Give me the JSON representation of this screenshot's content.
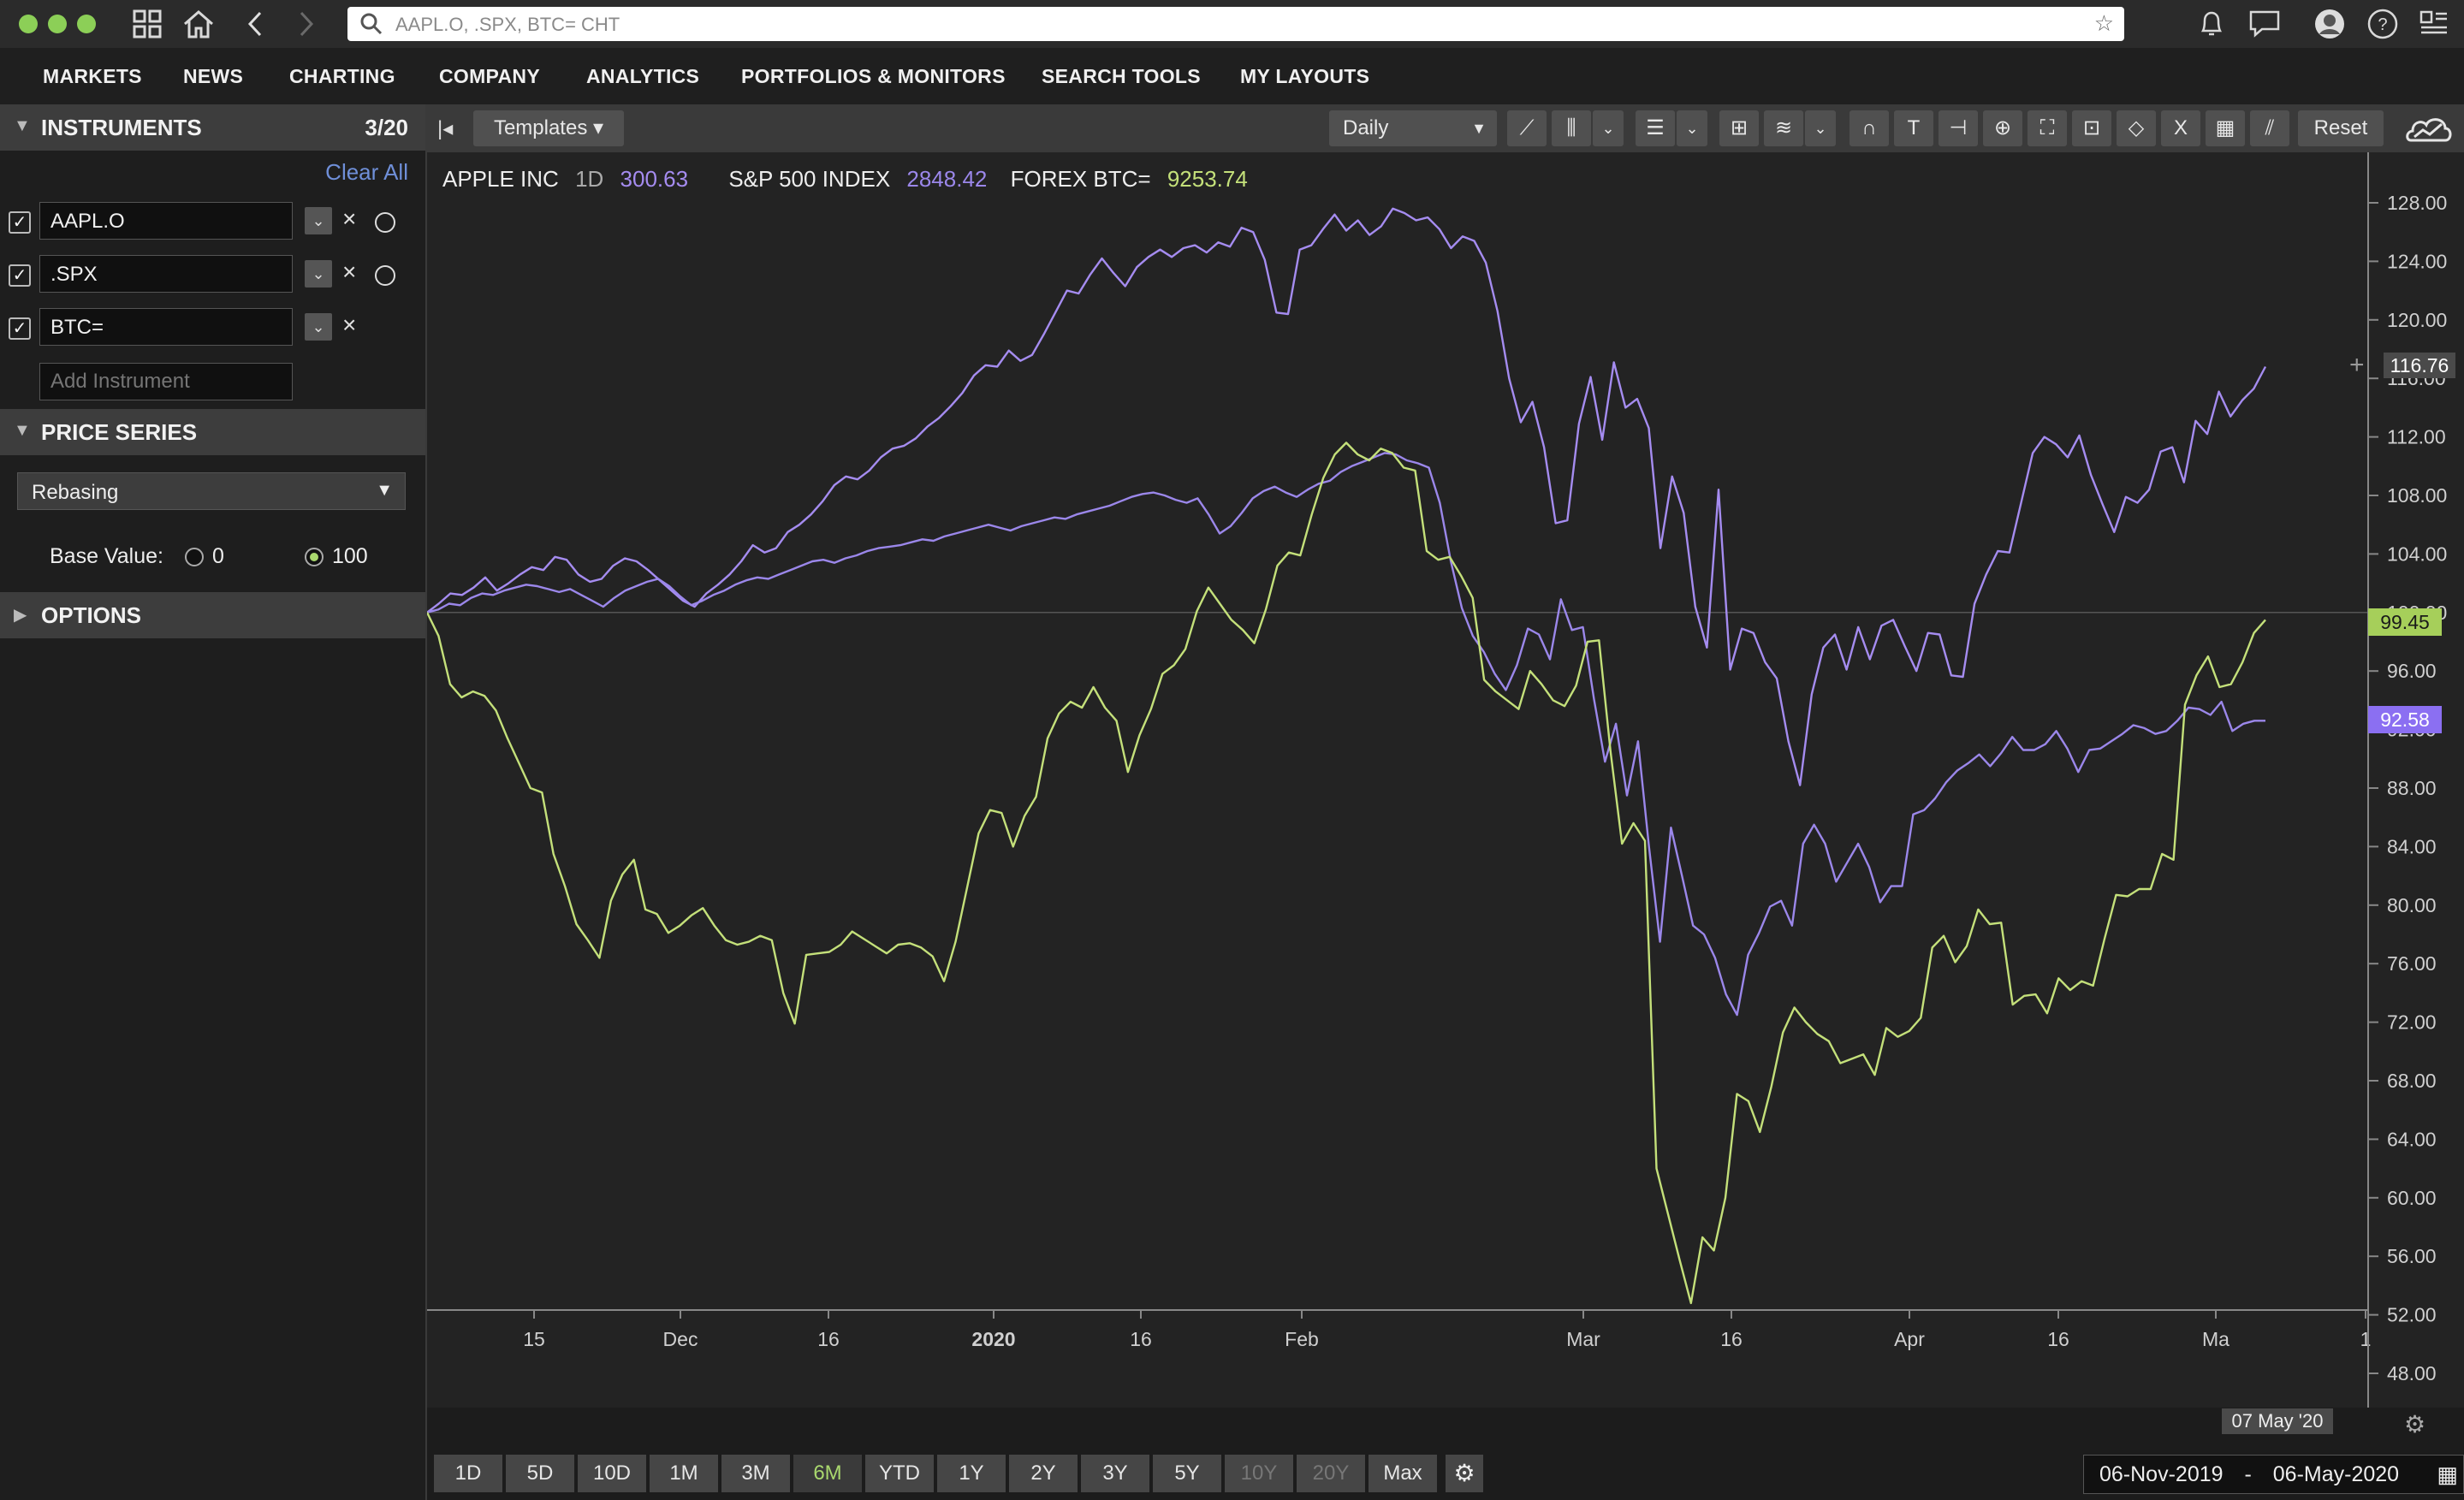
{
  "titlebar": {
    "search_text": "AAPL.O, .SPX, BTC= CHT",
    "icons": [
      "grid-icon",
      "home-icon",
      "back-icon",
      "forward-icon",
      "bell-icon",
      "chat-icon",
      "profile-icon",
      "help-icon",
      "panel-icon"
    ]
  },
  "nav": {
    "items": [
      "MARKETS",
      "NEWS",
      "CHARTING",
      "COMPANY",
      "ANALYTICS",
      "PORTFOLIOS & MONITORS",
      "SEARCH TOOLS",
      "MY LAYOUTS"
    ]
  },
  "instruments": {
    "title": "INSTRUMENTS",
    "count": "3/20",
    "clear_all": "Clear All",
    "items": [
      {
        "ric": "AAPL.O",
        "checked": true
      },
      {
        "ric": ".SPX",
        "checked": true
      },
      {
        "ric": "BTC=",
        "checked": true
      }
    ],
    "add_placeholder": "Add Instrument"
  },
  "price_series": {
    "title": "PRICE SERIES",
    "mode": "Rebasing",
    "base_label": "Base Value:",
    "base_options": [
      "0",
      "100"
    ],
    "base_selected": "100"
  },
  "options": {
    "title": "OPTIONS"
  },
  "toolbar": {
    "templates": "Templates ▾",
    "interval": "Daily",
    "reset": "Reset"
  },
  "legend": {
    "aapl_name": "APPLE INC",
    "aapl_int": "1D",
    "aapl_val": "300.63",
    "spx_name": "S&P 500 INDEX",
    "spx_val": "2848.42",
    "btc_name": "FOREX BTC=",
    "btc_val": "9253.74"
  },
  "colors": {
    "aapl": "#a58cf0",
    "spx": "#9b87ea",
    "btc": "#c4e07a",
    "label_purple": "#8b6ff2",
    "label_green": "#a6cf5a"
  },
  "chart_data": {
    "type": "line",
    "x_range": [
      "06-Nov-2019",
      "06-May-2020"
    ],
    "x_ticks": [
      "15",
      "Dec",
      "16",
      "2020",
      "16",
      "Feb",
      "Mar",
      "16",
      "Apr",
      "16",
      "Ma",
      "1"
    ],
    "y_ticks": [
      "128.00",
      "124.00",
      "120.00",
      "116.00",
      "112.00",
      "108.00",
      "104.00",
      "100.00",
      "96.00",
      "92.00",
      "88.00",
      "84.00",
      "80.00",
      "76.00",
      "72.00",
      "68.00",
      "64.00",
      "60.00",
      "56.00",
      "52.00",
      "48.00"
    ],
    "ylim": [
      48,
      130
    ],
    "base_value": 100,
    "last_values": [
      "116.76",
      "99.45",
      "92.58"
    ],
    "crosshair_date": "07 May '20",
    "series": [
      {
        "key": "aapl",
        "values": [
          100,
          100.6,
          101.3,
          101.2,
          101.7,
          102.4,
          101.5,
          102.0,
          102.6,
          103.1,
          102.9,
          103.8,
          103.6,
          102.6,
          102.1,
          102.3,
          103.2,
          103.7,
          103.5,
          102.9,
          102.2,
          101.5,
          100.8,
          100.4,
          101.3,
          101.9,
          102.6,
          103.5,
          104.6,
          104.1,
          104.4,
          105.5,
          106.0,
          106.7,
          107.6,
          108.7,
          109.3,
          109.1,
          109.7,
          110.6,
          111.2,
          111.4,
          111.9,
          112.7,
          113.3,
          114.1,
          115.0,
          116.2,
          116.9,
          116.8,
          117.9,
          117.2,
          117.6,
          119.0,
          120.5,
          122.0,
          121.8,
          123.1,
          124.2,
          123.2,
          122.3,
          123.6,
          124.3,
          124.8,
          124.3,
          124.9,
          125.1,
          124.6,
          125.3,
          125.0,
          126.3,
          126.0,
          124.1,
          120.5,
          120.4,
          124.8,
          125.1,
          126.2,
          127.2,
          126.1,
          126.8,
          125.8,
          126.4,
          127.6,
          127.3,
          126.8,
          127.0,
          126.2,
          124.9,
          125.7,
          125.4,
          123.9,
          120.6,
          116.0,
          113.0,
          114.4,
          111.3,
          106.1,
          106.3,
          112.9,
          116.1,
          111.8,
          117.1,
          114.0,
          114.6,
          112.6,
          104.4,
          109.3,
          106.8,
          100.4,
          97.6,
          108.4,
          96.1,
          98.9,
          98.6,
          96.6,
          95.5,
          91.2,
          88.2,
          94.4,
          97.6,
          98.5,
          96.1,
          99.0,
          96.8,
          99.1,
          99.5,
          97.7,
          96.0,
          98.6,
          98.5,
          95.7,
          95.6,
          100.6,
          102.6,
          104.2,
          104.1,
          107.5,
          110.9,
          112.0,
          111.5,
          110.6,
          112.1,
          109.4,
          107.4,
          105.5,
          107.9,
          107.5,
          108.4,
          111.0,
          111.3,
          108.9,
          113.1,
          112.2,
          115.1,
          113.4,
          114.5,
          115.3,
          116.8
        ]
      },
      {
        "key": "spx",
        "values": [
          100,
          100.2,
          100.6,
          100.5,
          101.0,
          101.3,
          101.2,
          101.5,
          101.7,
          101.9,
          101.8,
          101.6,
          101.4,
          101.6,
          101.2,
          100.8,
          100.4,
          101.0,
          101.5,
          101.8,
          102.1,
          102.3,
          101.8,
          101.1,
          100.5,
          100.8,
          101.2,
          101.5,
          101.9,
          102.2,
          102.4,
          102.3,
          102.6,
          102.9,
          103.2,
          103.5,
          103.6,
          103.4,
          103.7,
          103.9,
          104.2,
          104.4,
          104.5,
          104.6,
          104.8,
          105.0,
          104.9,
          105.2,
          105.4,
          105.6,
          105.8,
          106.0,
          105.8,
          105.6,
          105.9,
          106.1,
          106.3,
          106.5,
          106.4,
          106.7,
          106.9,
          107.1,
          107.3,
          107.6,
          107.9,
          108.1,
          108.2,
          108.0,
          107.7,
          107.5,
          107.8,
          106.7,
          105.4,
          105.9,
          106.8,
          107.8,
          108.3,
          108.6,
          108.2,
          107.9,
          108.4,
          108.8,
          109.0,
          109.6,
          110.0,
          110.3,
          110.6,
          110.9,
          110.8,
          110.4,
          110.2,
          109.9,
          107.5,
          103.5,
          100.3,
          98.4,
          97.3,
          95.8,
          94.7,
          96.4,
          98.9,
          98.5,
          96.8,
          100.9,
          98.8,
          99.0,
          94.1,
          89.8,
          92.4,
          87.5,
          91.2,
          84.0,
          77.5,
          85.3,
          82.0,
          78.6,
          78.0,
          76.4,
          73.9,
          72.5,
          76.6,
          78.1,
          79.9,
          80.3,
          78.6,
          84.2,
          85.5,
          84.2,
          81.6,
          82.9,
          84.2,
          82.6,
          80.2,
          81.3,
          81.3,
          86.2,
          86.5,
          87.3,
          88.4,
          89.2,
          89.7,
          90.3,
          89.5,
          90.4,
          91.5,
          90.6,
          90.6,
          91.0,
          91.9,
          90.7,
          89.1,
          90.6,
          90.7,
          91.2,
          91.7,
          92.3,
          92.1,
          91.7,
          91.9,
          92.6,
          93.5,
          93.4,
          93.0,
          93.9,
          91.9,
          92.4,
          92.6,
          92.6
        ]
      },
      {
        "key": "btc",
        "values": [
          100,
          98.4,
          95.1,
          94.2,
          94.6,
          94.3,
          93.3,
          91.4,
          89.7,
          88.0,
          87.7,
          83.5,
          81.3,
          78.7,
          77.6,
          76.4,
          80.3,
          82.1,
          83.1,
          79.7,
          79.4,
          78.1,
          78.6,
          79.3,
          79.8,
          78.6,
          77.6,
          77.3,
          77.5,
          77.9,
          77.6,
          74.0,
          71.9,
          76.6,
          76.7,
          76.8,
          77.3,
          78.2,
          77.7,
          77.2,
          76.7,
          77.3,
          77.4,
          77.1,
          76.5,
          74.8,
          77.5,
          81.2,
          84.9,
          86.5,
          86.3,
          84.0,
          86.1,
          87.4,
          91.4,
          93.1,
          93.9,
          93.5,
          94.9,
          93.5,
          92.6,
          89.1,
          91.6,
          93.4,
          95.8,
          96.4,
          97.5,
          100.1,
          101.7,
          100.6,
          99.5,
          98.8,
          97.9,
          100.2,
          103.2,
          104.1,
          103.9,
          106.7,
          109.2,
          110.8,
          111.6,
          110.8,
          110.4,
          111.2,
          110.9,
          109.9,
          109.7,
          104.2,
          103.6,
          103.8,
          102.5,
          101.0,
          95.4,
          94.6,
          94.0,
          93.4,
          96.0,
          95.1,
          94.0,
          93.6,
          95.0,
          98.0,
          98.1,
          90.5,
          84.2,
          85.6,
          84.4,
          62.0,
          58.9,
          55.8,
          52.8,
          57.3,
          56.4,
          60.0,
          67.1,
          66.6,
          64.5,
          67.6,
          71.3,
          73.0,
          72.0,
          71.2,
          70.7,
          69.2,
          69.5,
          69.8,
          68.4,
          71.6,
          71.0,
          71.4,
          72.3,
          77.1,
          77.9,
          76.1,
          77.2,
          79.7,
          78.7,
          78.8,
          73.2,
          73.8,
          73.9,
          72.6,
          75.0,
          74.2,
          74.8,
          74.5,
          77.7,
          80.7,
          80.6,
          81.1,
          81.1,
          83.5,
          83.1,
          93.7,
          95.7,
          97.0,
          94.9,
          95.1,
          96.6,
          98.6,
          99.5
        ]
      }
    ]
  },
  "bottom": {
    "ranges": [
      {
        "label": "1D"
      },
      {
        "label": "5D"
      },
      {
        "label": "10D"
      },
      {
        "label": "1M"
      },
      {
        "label": "3M"
      },
      {
        "label": "6M",
        "state": "selected"
      },
      {
        "label": "YTD"
      },
      {
        "label": "1Y"
      },
      {
        "label": "2Y"
      },
      {
        "label": "3Y"
      },
      {
        "label": "5Y"
      },
      {
        "label": "10Y",
        "state": "disabled"
      },
      {
        "label": "20Y",
        "state": "disabled"
      },
      {
        "label": "Max"
      }
    ],
    "date_from": "06-Nov-2019",
    "date_sep": "-",
    "date_to": "06-May-2020"
  }
}
